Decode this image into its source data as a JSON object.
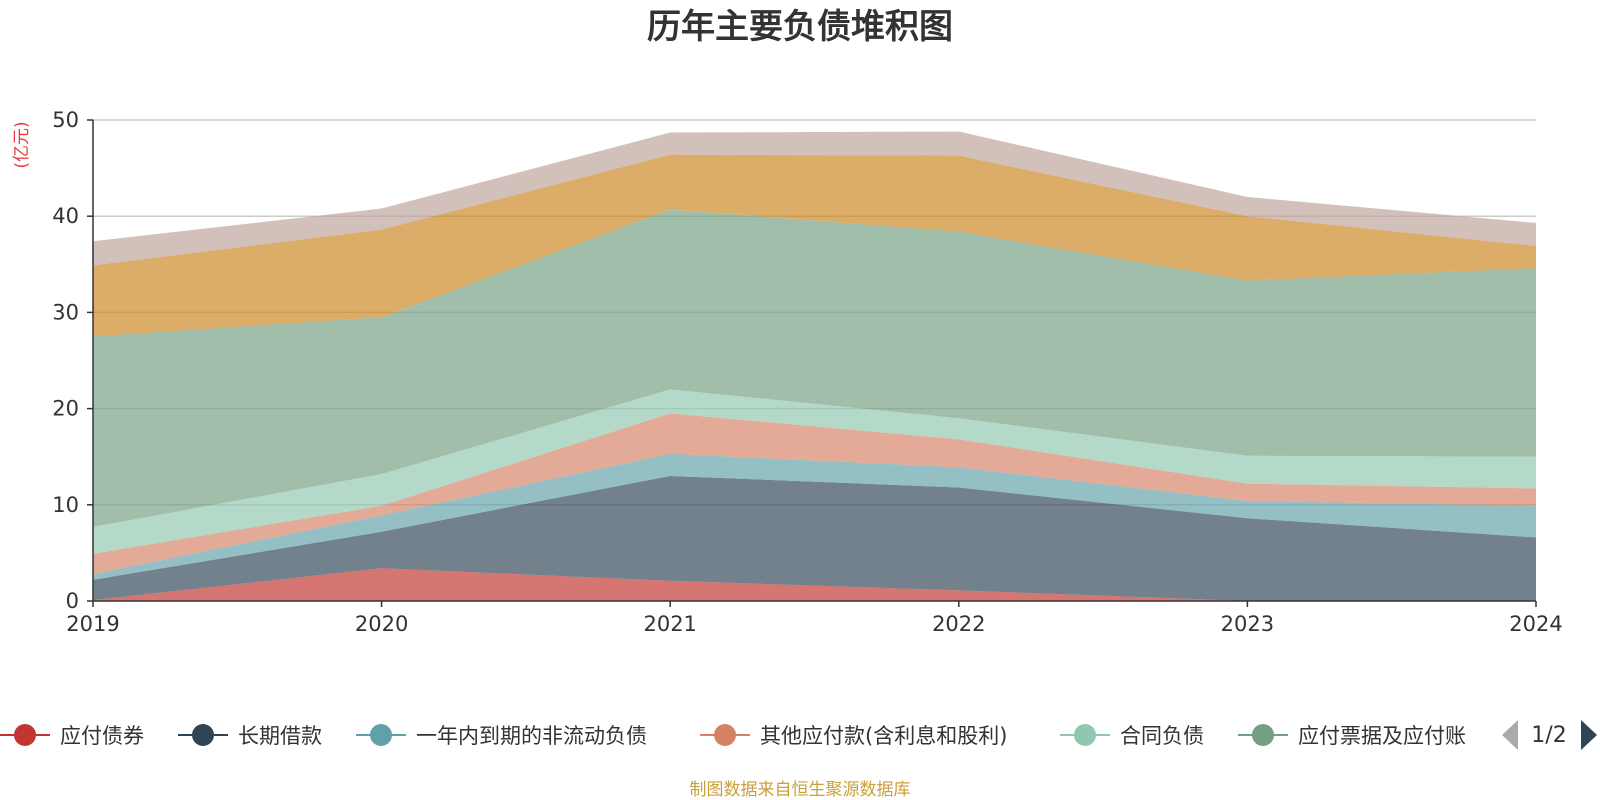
{
  "chart_data": {
    "type": "area",
    "stacked": true,
    "title": "历年主要负债堆积图",
    "ylabel": "(亿元)",
    "ylim": [
      0,
      50
    ],
    "yticks": [
      "0",
      "10",
      "20",
      "30",
      "40",
      "50"
    ],
    "x": [
      "2019",
      "2020",
      "2021",
      "2022",
      "2023",
      "2024"
    ],
    "grid": true,
    "series": [
      {
        "name": "应付债券",
        "color": "#c23531",
        "values": [
          0.1,
          3.4,
          2.1,
          1.1,
          0,
          0
        ]
      },
      {
        "name": "长期借款",
        "color": "#2f4554",
        "values": [
          2.1,
          3.8,
          10.9,
          10.7,
          8.6,
          6.6
        ]
      },
      {
        "name": "一年内到期的非流动负债",
        "color": "#61a0a8",
        "values": [
          0.6,
          1.7,
          2.3,
          2.1,
          1.8,
          3.3
        ]
      },
      {
        "name": "其他应付款(含利息和股利)",
        "color": "#d48265",
        "values": [
          2.1,
          1.0,
          4.2,
          2.9,
          1.8,
          1.8
        ]
      },
      {
        "name": "合同负债",
        "color": "#91c7ae",
        "values": [
          2.8,
          3.3,
          2.5,
          2.2,
          2.9,
          3.3
        ]
      },
      {
        "name": "应付票据及应付账款",
        "color": "#749f83",
        "values": [
          19.8,
          16.3,
          18.7,
          19.4,
          18.2,
          19.6
        ]
      },
      {
        "name": "",
        "color": "#ca8622",
        "values": [
          7.4,
          9.1,
          5.7,
          7.9,
          6.7,
          2.3
        ]
      },
      {
        "name": "",
        "color": "#bda29a",
        "values": [
          2.5,
          2.2,
          2.3,
          2.5,
          2.0,
          2.4
        ]
      }
    ],
    "legend": {
      "position": "bottom",
      "visible_entries": [
        "应付债券",
        "长期借款",
        "一年内到期的非流动负债",
        "其他应付款(含利息和股利)",
        "合同负债",
        "应付票据及应付账"
      ],
      "page": "1/2"
    }
  },
  "footer": {
    "source": "制图数据来自恒生聚源数据库"
  }
}
